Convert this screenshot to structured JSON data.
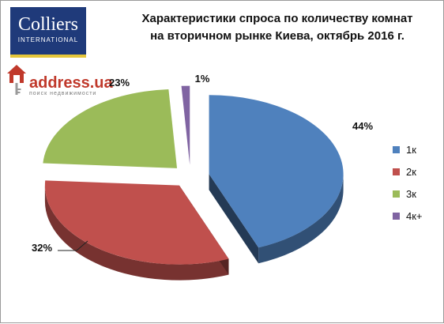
{
  "logos": {
    "colliers": {
      "name": "Colliers",
      "sub": "INTERNATIONAL"
    },
    "address": {
      "name": "address.ua",
      "tagline": "поиск недвижимости"
    }
  },
  "chart_data": {
    "type": "pie",
    "title_lines": [
      "Характеристики спроса по количеству комнат",
      "на вторичном рынке Киева, октябрь 2016 г."
    ],
    "categories": [
      "1к",
      "2к",
      "3к",
      "4к+"
    ],
    "values": [
      44,
      32,
      23,
      1
    ],
    "data_labels": [
      "44%",
      "32%",
      "23%",
      "1%"
    ],
    "colors": [
      "#4f81bd",
      "#c0504d",
      "#9bbb59",
      "#8064a2"
    ],
    "legend_position": "right",
    "style": "3d-exploded"
  }
}
